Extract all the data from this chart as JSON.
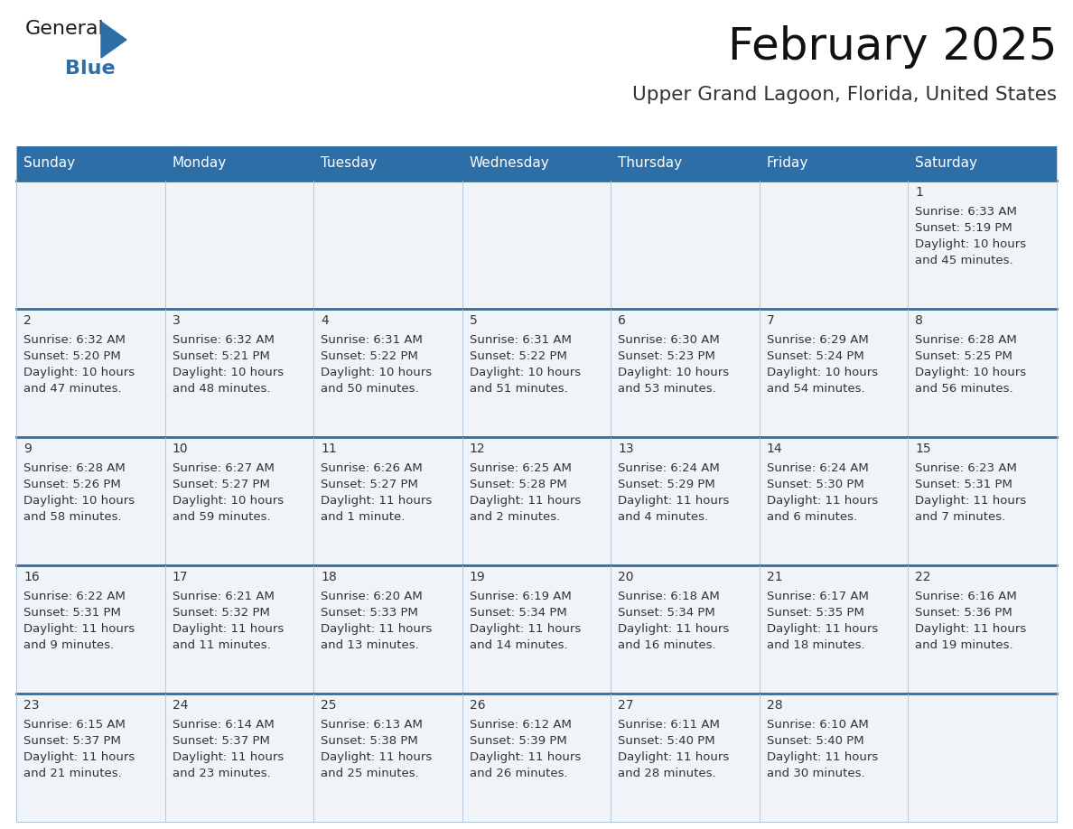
{
  "title": "February 2025",
  "subtitle": "Upper Grand Lagoon, Florida, United States",
  "days_of_week": [
    "Sunday",
    "Monday",
    "Tuesday",
    "Wednesday",
    "Thursday",
    "Friday",
    "Saturday"
  ],
  "header_bg": "#2E6EA6",
  "header_text": "#FFFFFF",
  "cell_bg": "#F0F4F8",
  "border_top_color": "#2E6EA6",
  "border_inner_color": "#B0C4D8",
  "day_num_color": "#333333",
  "cell_text_color": "#333333",
  "title_color": "#111111",
  "subtitle_color": "#333333",
  "logo_general_color": "#222222",
  "logo_blue_color": "#2E6EA6",
  "calendar_data": [
    [
      null,
      null,
      null,
      null,
      null,
      null,
      {
        "day": 1,
        "sunrise": "6:33 AM",
        "sunset": "5:19 PM",
        "daylight_line1": "Daylight: 10 hours",
        "daylight_line2": "and 45 minutes."
      }
    ],
    [
      {
        "day": 2,
        "sunrise": "6:32 AM",
        "sunset": "5:20 PM",
        "daylight_line1": "Daylight: 10 hours",
        "daylight_line2": "and 47 minutes."
      },
      {
        "day": 3,
        "sunrise": "6:32 AM",
        "sunset": "5:21 PM",
        "daylight_line1": "Daylight: 10 hours",
        "daylight_line2": "and 48 minutes."
      },
      {
        "day": 4,
        "sunrise": "6:31 AM",
        "sunset": "5:22 PM",
        "daylight_line1": "Daylight: 10 hours",
        "daylight_line2": "and 50 minutes."
      },
      {
        "day": 5,
        "sunrise": "6:31 AM",
        "sunset": "5:22 PM",
        "daylight_line1": "Daylight: 10 hours",
        "daylight_line2": "and 51 minutes."
      },
      {
        "day": 6,
        "sunrise": "6:30 AM",
        "sunset": "5:23 PM",
        "daylight_line1": "Daylight: 10 hours",
        "daylight_line2": "and 53 minutes."
      },
      {
        "day": 7,
        "sunrise": "6:29 AM",
        "sunset": "5:24 PM",
        "daylight_line1": "Daylight: 10 hours",
        "daylight_line2": "and 54 minutes."
      },
      {
        "day": 8,
        "sunrise": "6:28 AM",
        "sunset": "5:25 PM",
        "daylight_line1": "Daylight: 10 hours",
        "daylight_line2": "and 56 minutes."
      }
    ],
    [
      {
        "day": 9,
        "sunrise": "6:28 AM",
        "sunset": "5:26 PM",
        "daylight_line1": "Daylight: 10 hours",
        "daylight_line2": "and 58 minutes."
      },
      {
        "day": 10,
        "sunrise": "6:27 AM",
        "sunset": "5:27 PM",
        "daylight_line1": "Daylight: 10 hours",
        "daylight_line2": "and 59 minutes."
      },
      {
        "day": 11,
        "sunrise": "6:26 AM",
        "sunset": "5:27 PM",
        "daylight_line1": "Daylight: 11 hours",
        "daylight_line2": "and 1 minute."
      },
      {
        "day": 12,
        "sunrise": "6:25 AM",
        "sunset": "5:28 PM",
        "daylight_line1": "Daylight: 11 hours",
        "daylight_line2": "and 2 minutes."
      },
      {
        "day": 13,
        "sunrise": "6:24 AM",
        "sunset": "5:29 PM",
        "daylight_line1": "Daylight: 11 hours",
        "daylight_line2": "and 4 minutes."
      },
      {
        "day": 14,
        "sunrise": "6:24 AM",
        "sunset": "5:30 PM",
        "daylight_line1": "Daylight: 11 hours",
        "daylight_line2": "and 6 minutes."
      },
      {
        "day": 15,
        "sunrise": "6:23 AM",
        "sunset": "5:31 PM",
        "daylight_line1": "Daylight: 11 hours",
        "daylight_line2": "and 7 minutes."
      }
    ],
    [
      {
        "day": 16,
        "sunrise": "6:22 AM",
        "sunset": "5:31 PM",
        "daylight_line1": "Daylight: 11 hours",
        "daylight_line2": "and 9 minutes."
      },
      {
        "day": 17,
        "sunrise": "6:21 AM",
        "sunset": "5:32 PM",
        "daylight_line1": "Daylight: 11 hours",
        "daylight_line2": "and 11 minutes."
      },
      {
        "day": 18,
        "sunrise": "6:20 AM",
        "sunset": "5:33 PM",
        "daylight_line1": "Daylight: 11 hours",
        "daylight_line2": "and 13 minutes."
      },
      {
        "day": 19,
        "sunrise": "6:19 AM",
        "sunset": "5:34 PM",
        "daylight_line1": "Daylight: 11 hours",
        "daylight_line2": "and 14 minutes."
      },
      {
        "day": 20,
        "sunrise": "6:18 AM",
        "sunset": "5:34 PM",
        "daylight_line1": "Daylight: 11 hours",
        "daylight_line2": "and 16 minutes."
      },
      {
        "day": 21,
        "sunrise": "6:17 AM",
        "sunset": "5:35 PM",
        "daylight_line1": "Daylight: 11 hours",
        "daylight_line2": "and 18 minutes."
      },
      {
        "day": 22,
        "sunrise": "6:16 AM",
        "sunset": "5:36 PM",
        "daylight_line1": "Daylight: 11 hours",
        "daylight_line2": "and 19 minutes."
      }
    ],
    [
      {
        "day": 23,
        "sunrise": "6:15 AM",
        "sunset": "5:37 PM",
        "daylight_line1": "Daylight: 11 hours",
        "daylight_line2": "and 21 minutes."
      },
      {
        "day": 24,
        "sunrise": "6:14 AM",
        "sunset": "5:37 PM",
        "daylight_line1": "Daylight: 11 hours",
        "daylight_line2": "and 23 minutes."
      },
      {
        "day": 25,
        "sunrise": "6:13 AM",
        "sunset": "5:38 PM",
        "daylight_line1": "Daylight: 11 hours",
        "daylight_line2": "and 25 minutes."
      },
      {
        "day": 26,
        "sunrise": "6:12 AM",
        "sunset": "5:39 PM",
        "daylight_line1": "Daylight: 11 hours",
        "daylight_line2": "and 26 minutes."
      },
      {
        "day": 27,
        "sunrise": "6:11 AM",
        "sunset": "5:40 PM",
        "daylight_line1": "Daylight: 11 hours",
        "daylight_line2": "and 28 minutes."
      },
      {
        "day": 28,
        "sunrise": "6:10 AM",
        "sunset": "5:40 PM",
        "daylight_line1": "Daylight: 11 hours",
        "daylight_line2": "and 30 minutes."
      },
      null
    ]
  ]
}
